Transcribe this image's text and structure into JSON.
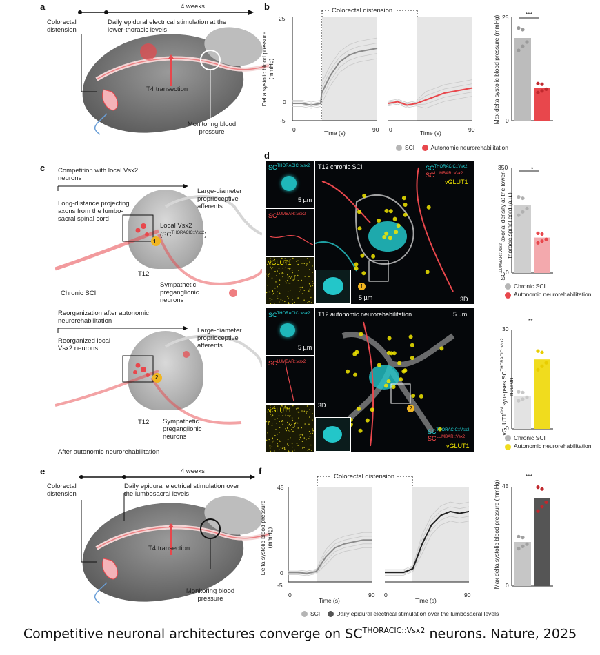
{
  "panel_a": {
    "letter": "a",
    "timeline": "4 weeks",
    "stimulus": "Colorectal distension",
    "stimulation": "Daily epidural electrical stimulation at the lower-thoracic levels",
    "transection": "T4 transection",
    "monitoring": "Monitoring blood pressure"
  },
  "panel_b": {
    "letter": "b",
    "title": "Colorectal distension",
    "ylabel": "Delta systolic blood pressure (mmHg)",
    "xlabel": "Time (s)",
    "yticks": [
      "25",
      "0",
      "-5"
    ],
    "xticks": [
      "0",
      "90"
    ],
    "bar_ylabel": "Max delta systolic blood pressure (mmHg)",
    "bar_yticks": [
      "25",
      "0"
    ],
    "sig": "***",
    "legend": [
      "SCI",
      "Autonomic neurorehabilitation"
    ]
  },
  "panel_c": {
    "letter": "c",
    "top": {
      "competition": "Competition with local Vsx2 neurons",
      "long_distance": "Long-distance projecting axons from the lumbo-sacral spinal cord",
      "large_diameter": "Large-diameter proprioceptive afferents",
      "local_vsx2": "Local Vsx2",
      "local_vsx2_sc": "SC",
      "local_vsx2_sup": "THORACIC::Vsx2",
      "level": "T12",
      "sympathetic": "Sympathetic preganglionic neurons",
      "condition": "Chronic SCI",
      "marker": "1"
    },
    "bottom": {
      "reorganization": "Reorganization after autonomic neurorehabilitation",
      "reorganized": "Reorganized local Vsx2 neurons",
      "large_diameter": "Large-diameter proprioceptive afferents",
      "level": "T12",
      "sympathetic": "Sympathetic preganglionic neurons",
      "condition": "After autonomic neurorehabilitation",
      "marker": "2"
    }
  },
  "panel_d": {
    "letter": "d",
    "sc": "SC",
    "thoracic_sup": "THORACIC::Vsx2",
    "lumbar_sup": "LUMBAR::Vsx2",
    "vglut1": "vGLUT1",
    "scale_5um": "5 µm",
    "title_top": "T12 chronic SCI",
    "title_bottom": "T12 autonomic neurorehabilitation",
    "tag_3d": "3D",
    "marker_1": "1",
    "marker_2": "2",
    "bar1_ylabel_pre": "SC",
    "bar1_ylabel_sup": "LUMBAR::Vsx2",
    "bar1_ylabel_post": "axonal density at the lower-thoracic spinal cord (a.u.)",
    "bar1_yticks": [
      "350",
      "0"
    ],
    "bar1_sig": "*",
    "bar1_legend": [
      "Chronic SCI",
      "Autonomic neurorehabilitation"
    ],
    "bar2_ylabel_pre": "vGLUT1",
    "bar2_ylabel_sup": "ON",
    "bar2_ylabel_mid": " synapses",
    "bar2_ylabel_sc": "SC",
    "bar2_ylabel_sc_sup": "THORACIC::Vsx2",
    "bar2_ylabel_post": " neuron",
    "bar2_yticks": [
      "30",
      "0"
    ],
    "bar2_sig": "**",
    "bar2_legend": [
      "Chronic SCI",
      "Autonomic neurorehabilitation"
    ]
  },
  "panel_e": {
    "letter": "e",
    "timeline": "4 weeks",
    "stimulus": "Colorectal distension",
    "stimulation": "Daily epidural electrical stimulation over the lumbosacral levels",
    "transection": "T4 transection",
    "monitoring": "Monitoring blood pressure"
  },
  "panel_f": {
    "letter": "f",
    "title": "Colorectal distension",
    "ylabel": "Delta systolic blood pressure (mmHg)",
    "xlabel": "Time (s)",
    "yticks": [
      "45",
      "0",
      "-5"
    ],
    "xticks": [
      "0",
      "90"
    ],
    "bar_ylabel": "Max delta systolic blood pressure (mmHg)",
    "bar_yticks": [
      "45",
      "0"
    ],
    "sig": "***",
    "legend": [
      "SCI",
      "Daily epidural electrical stimulation over the lumbosacral levels"
    ]
  },
  "caption": {
    "pre": "Competitive neuronal architectures converge on SC",
    "sup": "THORACIC::Vsx2",
    "post": " neurons. Nature, 2025"
  },
  "colors": {
    "sci_gray": "#b5b5b5",
    "rehab_red": "#e8474c",
    "yellow": "#f0dc1e",
    "dark": "#555555",
    "shade": "#e6e6e6"
  },
  "chart_data": [
    {
      "type": "line",
      "title": "Colorectal distension",
      "xlabel": "Time (s)",
      "ylabel": "Delta systolic blood pressure (mmHg)",
      "xlim": [
        0,
        90
      ],
      "ylim": [
        -5,
        25
      ],
      "series": [
        {
          "name": "SCI",
          "x": [
            0,
            10,
            20,
            30,
            31,
            40,
            50,
            60,
            70,
            80,
            90
          ],
          "y": [
            0,
            0,
            -0.5,
            0,
            3,
            8,
            12,
            14,
            15,
            15.5,
            16
          ]
        },
        {
          "name": "Autonomic neurorehabilitation",
          "x": [
            0,
            10,
            20,
            30,
            40,
            50,
            60,
            70,
            80,
            90
          ],
          "y": [
            0,
            0.5,
            -0.5,
            0,
            1,
            2,
            3,
            3.5,
            4,
            4.5
          ]
        }
      ]
    },
    {
      "type": "bar",
      "ylabel": "Max delta systolic blood pressure (mmHg)",
      "categories": [
        "SCI",
        "Autonomic neurorehabilitation"
      ],
      "values": [
        20,
        8
      ],
      "ylim": [
        0,
        25
      ]
    },
    {
      "type": "bar",
      "categories": [
        "Chronic SCI",
        "Autonomic neurorehabilitation"
      ],
      "values": [
        230,
        120
      ],
      "ylim": [
        0,
        350
      ]
    },
    {
      "type": "bar",
      "categories": [
        "Chronic SCI",
        "Autonomic neurorehabilitation"
      ],
      "values": [
        10,
        21
      ],
      "ylim": [
        0,
        30
      ]
    },
    {
      "type": "line",
      "title": "Colorectal distension",
      "xlabel": "Time (s)",
      "ylabel": "Delta systolic blood pressure (mmHg)",
      "xlim": [
        0,
        90
      ],
      "ylim": [
        -5,
        45
      ],
      "series": [
        {
          "name": "SCI",
          "x": [
            0,
            10,
            20,
            30,
            40,
            50,
            60,
            70,
            80,
            90
          ],
          "y": [
            0,
            0,
            -0.5,
            0.5,
            8,
            13,
            15,
            16,
            17,
            17
          ]
        },
        {
          "name": "Daily epidural electrical stimulation over the lumbosacral levels",
          "x": [
            0,
            10,
            20,
            30,
            40,
            50,
            60,
            70,
            80,
            90
          ],
          "y": [
            0,
            0,
            0,
            2,
            15,
            25,
            30,
            32,
            31,
            32
          ]
        }
      ]
    },
    {
      "type": "bar",
      "ylabel": "Max delta systolic blood pressure (mmHg)",
      "categories": [
        "SCI",
        "Daily epidural electrical stimulation over the lumbosacral levels"
      ],
      "values": [
        20,
        40
      ],
      "ylim": [
        0,
        45
      ]
    }
  ]
}
